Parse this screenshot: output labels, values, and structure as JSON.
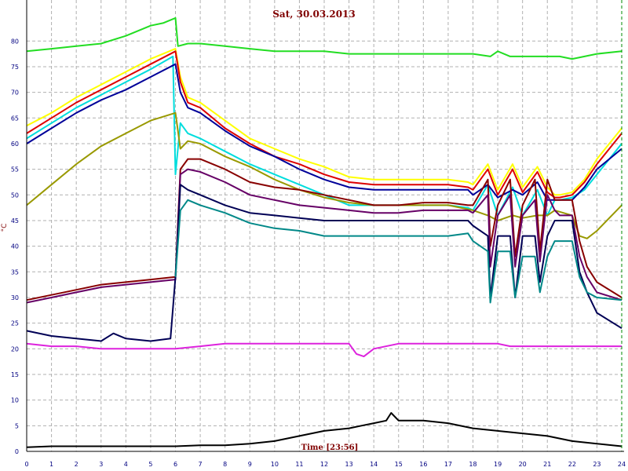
{
  "chart_data": {
    "type": "line",
    "title": "Sat, 30.03.2013",
    "xlabel": "Time [23:56]",
    "ylabel": "°C",
    "xlim": [
      0,
      24
    ],
    "ylim": [
      0,
      88
    ],
    "xticks": [
      0,
      1,
      2,
      3,
      4,
      5,
      6,
      7,
      8,
      9,
      10,
      11,
      12,
      13,
      14,
      15,
      16,
      17,
      18,
      19,
      20,
      21,
      22,
      23,
      24
    ],
    "yticks": [
      0,
      5,
      10,
      15,
      20,
      25,
      30,
      35,
      40,
      45,
      50,
      55,
      60,
      65,
      70,
      75,
      80
    ],
    "grid": true,
    "cursor_x": 24,
    "series": [
      {
        "color": "#22dd22",
        "x": [
          0,
          1,
          2,
          3,
          4,
          4.5,
          5,
          5.5,
          6,
          6.1,
          6.5,
          7,
          8,
          9,
          10,
          11,
          12,
          13,
          14,
          15,
          16,
          17,
          18,
          18.7,
          19,
          19.5,
          20,
          20.5,
          21,
          21.5,
          22,
          22.5,
          23,
          24
        ],
        "y": [
          78,
          78.5,
          79,
          79.5,
          81,
          82,
          83,
          83.5,
          84.5,
          79,
          79.5,
          79.5,
          79,
          78.5,
          78,
          78,
          78,
          77.5,
          77.5,
          77.5,
          77.5,
          77.5,
          77.5,
          77,
          78,
          77,
          77,
          77,
          77,
          77,
          76.5,
          77,
          77.5,
          78
        ]
      },
      {
        "color": "#ffff00",
        "x": [
          0,
          1,
          2,
          3,
          4,
          5,
          6,
          6.2,
          6.5,
          7,
          8,
          9,
          10,
          11,
          12,
          13,
          14,
          15,
          16,
          17,
          17.8,
          18,
          18.6,
          19,
          19.6,
          20,
          20.6,
          21,
          21.3,
          21.5,
          22,
          22.5,
          23,
          24
        ],
        "y": [
          63.5,
          66,
          69,
          71.5,
          74,
          76.5,
          78.5,
          73,
          69,
          68,
          64.5,
          61,
          59,
          57,
          55.5,
          53.5,
          53,
          53,
          53,
          53,
          52.5,
          52,
          56,
          51,
          56,
          51.5,
          55.5,
          51.5,
          50,
          50,
          50.5,
          53,
          57,
          63
        ]
      },
      {
        "color": "#dd0000",
        "x": [
          0,
          1,
          2,
          3,
          4,
          5,
          6,
          6.2,
          6.5,
          7,
          8,
          9,
          10,
          11,
          12,
          13,
          14,
          15,
          16,
          17,
          17.8,
          18,
          18.6,
          19,
          19.6,
          20,
          20.6,
          21,
          21.3,
          21.5,
          22,
          22.5,
          23,
          24
        ],
        "y": [
          62,
          65,
          68,
          70.5,
          73,
          75.5,
          78,
          72,
          68,
          67,
          63,
          60,
          57.5,
          56,
          54,
          52.5,
          52,
          52,
          52,
          52,
          51.5,
          51,
          55,
          50,
          55,
          50.5,
          54.5,
          50.5,
          49.5,
          49.5,
          50,
          52.5,
          56,
          62
        ]
      },
      {
        "color": "#00dddd",
        "x": [
          0,
          1,
          2,
          3,
          4,
          5,
          5.9,
          6,
          6.2,
          6.5,
          7,
          8,
          9,
          10,
          11,
          12,
          13,
          13.5,
          14,
          15,
          16,
          17,
          17.8,
          18,
          18.6,
          19,
          19.6,
          20,
          20.6,
          21,
          21.3,
          21.5,
          22,
          22.5,
          23,
          24
        ],
        "y": [
          61,
          64,
          67,
          69.5,
          72,
          74.5,
          77,
          54,
          64,
          62,
          61,
          58.5,
          56,
          54,
          52,
          50,
          48,
          48,
          48,
          48,
          48,
          48,
          47.5,
          47,
          52,
          46,
          51.5,
          46,
          51,
          46,
          49,
          49,
          49.5,
          51,
          54,
          60
        ]
      },
      {
        "color": "#000099",
        "x": [
          0,
          1,
          2,
          3,
          4,
          5,
          6,
          6.2,
          6.5,
          7,
          8,
          9,
          10,
          11,
          12,
          13,
          14,
          15,
          16,
          17,
          17.8,
          18,
          18.6,
          19,
          19.6,
          20,
          20.6,
          21,
          21.3,
          21.5,
          22,
          22.5,
          23,
          24
        ],
        "y": [
          60,
          63,
          66,
          68.5,
          70.5,
          73,
          75.5,
          70,
          67,
          66,
          62.5,
          59.5,
          57.5,
          55,
          53,
          51.5,
          51,
          51,
          51,
          51,
          51,
          50,
          52,
          49.5,
          51,
          50,
          52.5,
          49,
          49,
          49,
          49,
          51.5,
          55,
          59
        ]
      },
      {
        "color": "#999900",
        "x": [
          0,
          1,
          2,
          3,
          4,
          5,
          6,
          6.2,
          6.5,
          7,
          8,
          9,
          10,
          11,
          12,
          13,
          14,
          15,
          16,
          17,
          18,
          18.6,
          19,
          19.6,
          20,
          20.6,
          21,
          21.3,
          22,
          22.3,
          22.6,
          23,
          24
        ],
        "y": [
          48,
          52,
          56,
          59.5,
          62,
          64.5,
          66,
          59,
          60.5,
          60,
          57.5,
          55.5,
          53,
          51,
          49.5,
          48.5,
          48,
          48,
          48,
          48,
          47,
          46,
          45,
          46,
          45.5,
          46,
          46,
          47,
          46,
          42,
          41.5,
          43,
          48
        ]
      },
      {
        "color": "#880000",
        "x": [
          0,
          1,
          2,
          3,
          4,
          5,
          6,
          6.2,
          6.5,
          7,
          8,
          9,
          10,
          11,
          12,
          13,
          14,
          15,
          16,
          17,
          17.8,
          18,
          18.6,
          18.7,
          19,
          19.5,
          19.7,
          20,
          20.5,
          20.7,
          21,
          21.3,
          21.5,
          22,
          22.3,
          22.6,
          23,
          24
        ],
        "y": [
          29.5,
          30.5,
          31.5,
          32.5,
          33,
          33.5,
          34,
          55,
          57,
          57,
          55,
          52.5,
          51.5,
          51,
          50,
          49,
          48,
          48,
          48.5,
          48.5,
          48,
          48,
          53,
          40,
          48,
          53,
          38,
          48,
          53,
          39,
          53,
          49,
          49,
          49,
          41,
          36,
          33,
          30
        ]
      },
      {
        "color": "#660066",
        "x": [
          0,
          1,
          2,
          3,
          4,
          5,
          6,
          6.2,
          6.5,
          7,
          8,
          9,
          10,
          11,
          12,
          13,
          14,
          15,
          16,
          17,
          17.8,
          18,
          18.6,
          18.7,
          19,
          19.5,
          19.7,
          20,
          20.5,
          20.7,
          21,
          21.3,
          21.5,
          22,
          22.3,
          22.6,
          23,
          24
        ],
        "y": [
          29,
          30,
          31,
          32,
          32.5,
          33,
          33.5,
          54,
          55,
          54.5,
          52.5,
          50,
          49,
          48,
          47.5,
          47,
          46.5,
          46.5,
          47,
          47,
          47,
          46.5,
          50,
          36,
          46,
          50,
          36,
          46,
          49,
          37,
          50,
          47,
          46,
          46,
          38,
          34,
          31,
          29.5
        ]
      },
      {
        "color": "#000055",
        "x": [
          0,
          1,
          2,
          3,
          3.5,
          4,
          5,
          5.8,
          6,
          6.2,
          6.5,
          7,
          8,
          9,
          10,
          11,
          12,
          13,
          14,
          15,
          16,
          17,
          17.8,
          18,
          18.6,
          18.7,
          19,
          19.5,
          19.7,
          20,
          20.5,
          20.7,
          21,
          21.3,
          21.5,
          22,
          22.3,
          22.6,
          23,
          24
        ],
        "y": [
          23.5,
          22.5,
          22,
          21.5,
          23,
          22,
          21.5,
          22,
          34,
          52,
          51,
          50,
          48,
          46.5,
          46,
          45.5,
          45,
          45,
          45,
          45,
          45,
          45,
          45,
          44,
          42,
          30,
          42,
          42,
          30,
          42,
          42,
          33,
          42,
          45,
          45,
          45,
          35,
          31,
          27,
          24
        ]
      },
      {
        "color": "#008888",
        "x": [
          6,
          6.2,
          6.5,
          7,
          8,
          9,
          10,
          11,
          12,
          13,
          14,
          15,
          16,
          17,
          17.8,
          18,
          18.6,
          18.7,
          19,
          19.5,
          19.7,
          20,
          20.5,
          20.7,
          21,
          21.3,
          21.5,
          22,
          22.3,
          22.6,
          23,
          24
        ],
        "y": [
          34,
          47,
          49,
          48,
          46.5,
          44.5,
          43.5,
          43,
          42,
          42,
          42,
          42,
          42,
          42,
          42.5,
          41,
          39,
          29,
          39,
          39,
          30,
          38,
          38,
          31,
          38,
          41,
          41,
          41,
          34,
          31,
          30,
          29.5
        ]
      },
      {
        "color": "#dd22dd",
        "x": [
          0,
          1,
          2,
          3,
          4,
          5,
          6,
          7,
          8,
          9,
          10,
          11,
          12,
          13,
          13.3,
          13.6,
          14,
          15,
          16,
          17,
          18,
          19,
          19.5,
          20,
          21,
          22,
          23,
          24
        ],
        "y": [
          21,
          20.5,
          20.5,
          20,
          20,
          20,
          20,
          20.5,
          21,
          21,
          21,
          21,
          21,
          21,
          19,
          18.5,
          20,
          21,
          21,
          21,
          21,
          21,
          20.5,
          20.5,
          20.5,
          20.5,
          20.5,
          20.5
        ]
      },
      {
        "color": "#000000",
        "x": [
          0,
          1,
          2,
          3,
          4,
          5,
          6,
          7,
          8,
          9,
          10,
          11,
          12,
          13,
          13.5,
          14,
          14.5,
          14.7,
          15,
          16,
          17,
          18,
          19,
          20,
          21,
          22,
          23,
          24
        ],
        "y": [
          0.8,
          1,
          1,
          1,
          1,
          1,
          1,
          1.2,
          1.2,
          1.5,
          2,
          3,
          4,
          4.5,
          5,
          5.5,
          6,
          7.5,
          6,
          6,
          5.5,
          4.5,
          4,
          3.5,
          3,
          2,
          1.5,
          1
        ]
      }
    ]
  }
}
